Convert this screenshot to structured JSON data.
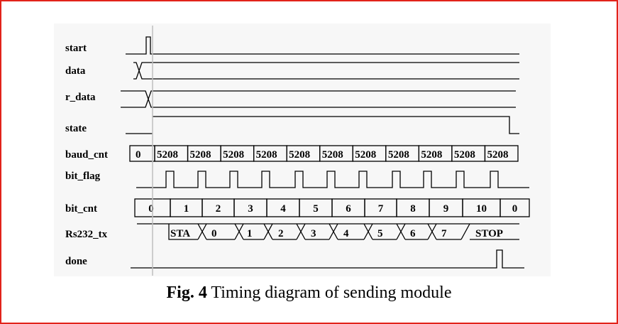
{
  "signals": {
    "start": "start",
    "data": "data",
    "r_data": "r_data",
    "state": "state",
    "baud_cnt": "baud_cnt",
    "bit_flag": "bit_flag",
    "bit_cnt": "bit_cnt",
    "rs232_tx": "Rs232_tx",
    "done": "done"
  },
  "baud_cnt_values": [
    "0",
    "5208",
    "5208",
    "5208",
    "5208",
    "5208",
    "5208",
    "5208",
    "5208",
    "5208",
    "5208",
    "5208"
  ],
  "bit_cnt_values": [
    "0",
    "1",
    "2",
    "3",
    "4",
    "5",
    "6",
    "7",
    "8",
    "9",
    "10",
    "0"
  ],
  "rs232_tx_values": [
    "STA",
    "0",
    "1",
    "2",
    "3",
    "4",
    "5",
    "6",
    "7",
    "STOP"
  ],
  "caption": {
    "label": "Fig. 4",
    "text": " Timing diagram of sending module"
  }
}
